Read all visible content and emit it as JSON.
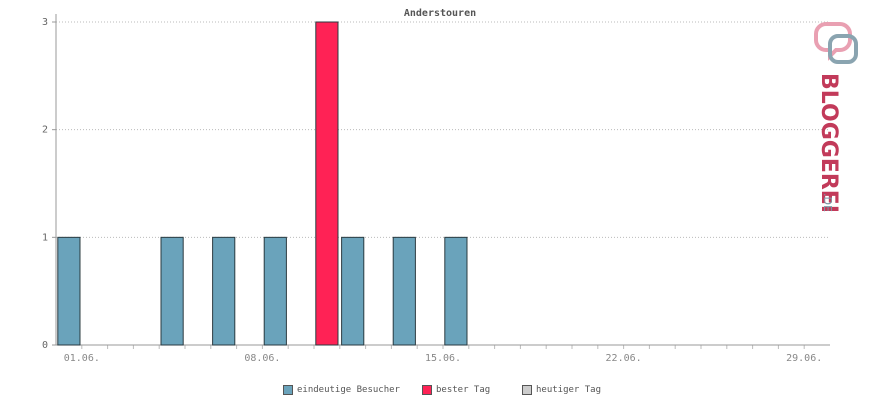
{
  "chart_data": {
    "type": "bar",
    "title": "Anderstouren",
    "xlabel": "",
    "ylabel": "",
    "ylim": [
      0,
      3
    ],
    "yticks": [
      "0",
      "1",
      "2",
      "3"
    ],
    "x_tick_labels": [
      "01.06.",
      "08.06.",
      "15.06.",
      "22.06.",
      "29.06."
    ],
    "x_tick_days": [
      1,
      8,
      15,
      22,
      29
    ],
    "xrange_days": [
      0,
      30
    ],
    "grid": true,
    "legend_placement": "bottom-center",
    "series": [
      {
        "name": "eindeutige Besucher",
        "color": "#6aa3bb",
        "points": [
          {
            "day": 0.5,
            "value": 1
          },
          {
            "day": 4.5,
            "value": 1
          },
          {
            "day": 6.5,
            "value": 1
          },
          {
            "day": 8.5,
            "value": 1
          },
          {
            "day": 11.5,
            "value": 1
          },
          {
            "day": 13.5,
            "value": 1
          },
          {
            "day": 15.5,
            "value": 1
          }
        ]
      },
      {
        "name": "bester Tag",
        "color": "#ff2255",
        "points": [
          {
            "day": 10.5,
            "value": 3
          }
        ]
      },
      {
        "name": "heutiger Tag",
        "color": "#cccccc",
        "points": []
      }
    ]
  },
  "legend": {
    "items": [
      {
        "label": "eindeutige Besucher",
        "color": "#6aa3bb"
      },
      {
        "label": "bester Tag",
        "color": "#ff2255"
      },
      {
        "label": "heutiger Tag",
        "color": "#cccccc"
      }
    ]
  },
  "brand": {
    "name": "BLOGGEREI",
    "suffix": ".DE",
    "color_main": "#c23a5a",
    "color_accent": "#7a9aa8"
  }
}
